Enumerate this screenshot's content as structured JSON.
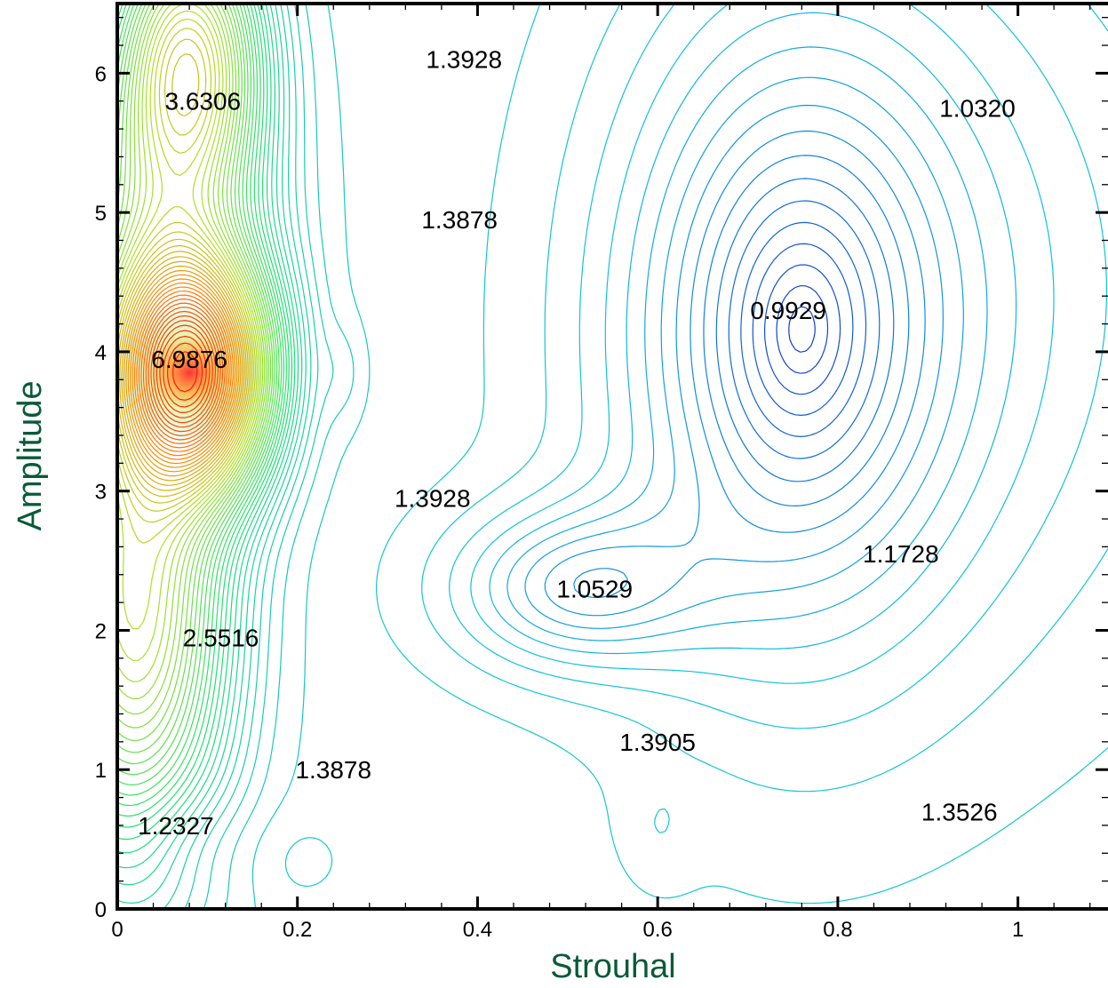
{
  "chart_data": {
    "type": "contour",
    "xlabel": "Strouhal",
    "ylabel": "Amplitude",
    "xlim": [
      0,
      1.1
    ],
    "ylim": [
      0,
      6.5
    ],
    "xticks": [
      "0",
      "0.2",
      "0.4",
      "0.6",
      "0.8",
      "1"
    ],
    "xtick_values": [
      0,
      0.2,
      0.4,
      0.6,
      0.8,
      1.0
    ],
    "yticks": [
      "0",
      "1",
      "2",
      "3",
      "4",
      "5",
      "6"
    ],
    "ytick_values": [
      0,
      1,
      2,
      3,
      4,
      5,
      6
    ],
    "axis_title_color": "#0a5a3a",
    "colormap": [
      "#1030d0",
      "#10c0e0",
      "#20e070",
      "#b0e020",
      "#ff8000",
      "#ff1010"
    ],
    "contour_labels": [
      {
        "text": "1.3928",
        "x": 0.385,
        "y": 6.1
      },
      {
        "text": "3.6306",
        "x": 0.095,
        "y": 5.8
      },
      {
        "text": "1.0320",
        "x": 0.955,
        "y": 5.75
      },
      {
        "text": "1.3878",
        "x": 0.38,
        "y": 4.95
      },
      {
        "text": "0.9929",
        "x": 0.745,
        "y": 4.3
      },
      {
        "text": "6.9876",
        "x": 0.08,
        "y": 3.95
      },
      {
        "text": "1.3928",
        "x": 0.35,
        "y": 2.95
      },
      {
        "text": "1.1728",
        "x": 0.87,
        "y": 2.55
      },
      {
        "text": "1.0529",
        "x": 0.53,
        "y": 2.3
      },
      {
        "text": "2.5516",
        "x": 0.115,
        "y": 1.95
      },
      {
        "text": "1.3905",
        "x": 0.6,
        "y": 1.2
      },
      {
        "text": "1.3878",
        "x": 0.24,
        "y": 1.0
      },
      {
        "text": "1.3526",
        "x": 0.935,
        "y": 0.7
      },
      {
        "text": "1.2327",
        "x": 0.065,
        "y": 0.6
      }
    ]
  }
}
